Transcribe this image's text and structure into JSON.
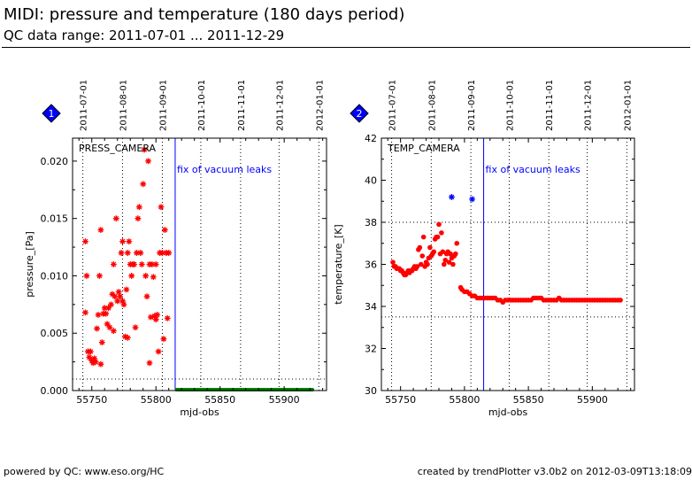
{
  "header": {
    "title": "MIDI: pressure and temperature (180 days period)",
    "subtitle": "QC data range: 2011-07-01 ... 2011-12-29"
  },
  "footer": {
    "left": "powered by QC: www.eso.org/HC",
    "right": "created by trendPlotter v3.0b2 on 2012-03-09T13:18:09"
  },
  "colors": {
    "data": "#ff0000",
    "outlier": "#0000ff",
    "recent": "#008000",
    "event_line": "#0000ff",
    "badge": "#0000ff"
  },
  "chart_data": [
    {
      "type": "scatter",
      "badge": "1",
      "panel_label": "PRESS_CAMERA",
      "xlabel": "mjd-obs",
      "ylabel": "pressure_[Pa]",
      "xlim": [
        55735,
        55933
      ],
      "ylim": [
        0,
        0.022
      ],
      "x_ticks": [
        55750,
        55800,
        55850,
        55900
      ],
      "x_tick_labels": [
        "55750",
        "55800",
        "55850",
        "55900"
      ],
      "y_ticks": [
        0,
        0.005,
        0.01,
        0.015,
        0.02
      ],
      "y_tick_labels": [
        "0.000",
        "0.005",
        "0.010",
        "0.015",
        "0.020"
      ],
      "date_ticks": [
        {
          "label": "2011-07-01",
          "mjd": 55743
        },
        {
          "label": "2011-08-01",
          "mjd": 55774
        },
        {
          "label": "2011-09-01",
          "mjd": 55805
        },
        {
          "label": "2011-10-01",
          "mjd": 55835
        },
        {
          "label": "2011-11-01",
          "mjd": 55866
        },
        {
          "label": "2011-12-01",
          "mjd": 55896
        },
        {
          "label": "2012-01-01",
          "mjd": 55927
        }
      ],
      "hlines": [
        0.001
      ],
      "event": {
        "x": 55815,
        "label": "fix of vacuum leaks"
      },
      "series": [
        {
          "role": "data",
          "marker": "star",
          "points": [
            [
              55745,
              0.013
            ],
            [
              55745,
              0.0068
            ],
            [
              55746,
              0.01
            ],
            [
              55747,
              0.0034
            ],
            [
              55748,
              0.0029
            ],
            [
              55749,
              0.0034
            ],
            [
              55750,
              0.0026
            ],
            [
              55751,
              0.0024
            ],
            [
              55752,
              0.0028
            ],
            [
              55753,
              0.0025
            ],
            [
              55754,
              0.0054
            ],
            [
              55755,
              0.0066
            ],
            [
              55756,
              0.01
            ],
            [
              55757,
              0.014
            ],
            [
              55757,
              0.0023
            ],
            [
              55758,
              0.0042
            ],
            [
              55759,
              0.0067
            ],
            [
              55760,
              0.0072
            ],
            [
              55761,
              0.0067
            ],
            [
              55762,
              0.0058
            ],
            [
              55763,
              0.0072
            ],
            [
              55764,
              0.0055
            ],
            [
              55765,
              0.0075
            ],
            [
              55766,
              0.0084
            ],
            [
              55767,
              0.0052
            ],
            [
              55767,
              0.011
            ],
            [
              55768,
              0.0082
            ],
            [
              55769,
              0.015
            ],
            [
              55770,
              0.0078
            ],
            [
              55771,
              0.0086
            ],
            [
              55772,
              0.0082
            ],
            [
              55773,
              0.012
            ],
            [
              55774,
              0.013
            ],
            [
              55774,
              0.0078
            ],
            [
              55775,
              0.0075
            ],
            [
              55776,
              0.0047
            ],
            [
              55777,
              0.0088
            ],
            [
              55778,
              0.0046
            ],
            [
              55778,
              0.012
            ],
            [
              55779,
              0.013
            ],
            [
              55780,
              0.011
            ],
            [
              55781,
              0.01
            ],
            [
              55782,
              0.011
            ],
            [
              55783,
              0.011
            ],
            [
              55784,
              0.0055
            ],
            [
              55785,
              0.012
            ],
            [
              55786,
              0.015
            ],
            [
              55787,
              0.016
            ],
            [
              55788,
              0.012
            ],
            [
              55789,
              0.011
            ],
            [
              55790,
              0.018
            ],
            [
              55791,
              0.021
            ],
            [
              55792,
              0.01
            ],
            [
              55793,
              0.0082
            ],
            [
              55794,
              0.02
            ],
            [
              55795,
              0.0024
            ],
            [
              55795,
              0.011
            ],
            [
              55796,
              0.0064
            ],
            [
              55797,
              0.011
            ],
            [
              55798,
              0.0099
            ],
            [
              55799,
              0.0065
            ],
            [
              55800,
              0.0062
            ],
            [
              55800,
              0.011
            ],
            [
              55801,
              0.0066
            ],
            [
              55802,
              0.0034
            ],
            [
              55803,
              0.012
            ],
            [
              55804,
              0.016
            ],
            [
              55805,
              0.012
            ],
            [
              55806,
              0.0045
            ],
            [
              55807,
              0.014
            ],
            [
              55808,
              0.012
            ],
            [
              55809,
              0.0063
            ],
            [
              55810,
              0.012
            ]
          ]
        },
        {
          "role": "recent",
          "marker": "band",
          "x_range": [
            55816,
            55922
          ],
          "y": 0.0
        }
      ]
    },
    {
      "type": "scatter",
      "badge": "2",
      "panel_label": "TEMP_CAMERA",
      "xlabel": "mjd-obs",
      "ylabel": "temperature_[K]",
      "xlim": [
        55735,
        55933
      ],
      "ylim": [
        30,
        42
      ],
      "x_ticks": [
        55750,
        55800,
        55850,
        55900
      ],
      "x_tick_labels": [
        "55750",
        "55800",
        "55850",
        "55900"
      ],
      "y_ticks": [
        30,
        32,
        34,
        36,
        38,
        40,
        42
      ],
      "y_tick_labels": [
        "30",
        "32",
        "34",
        "36",
        "38",
        "40",
        "42"
      ],
      "date_ticks": [
        {
          "label": "2011-07-01",
          "mjd": 55743
        },
        {
          "label": "2011-08-01",
          "mjd": 55774
        },
        {
          "label": "2011-09-01",
          "mjd": 55805
        },
        {
          "label": "2011-10-01",
          "mjd": 55835
        },
        {
          "label": "2011-11-01",
          "mjd": 55866
        },
        {
          "label": "2011-12-01",
          "mjd": 55896
        },
        {
          "label": "2012-01-01",
          "mjd": 55927
        }
      ],
      "hlines": [
        38,
        33.5
      ],
      "event": {
        "x": 55815,
        "label": "fix of vacuum leaks"
      },
      "series": [
        {
          "role": "data",
          "marker": "dot",
          "points": [
            [
              55744,
              36.1
            ],
            [
              55745,
              35.9
            ],
            [
              55746,
              35.9
            ],
            [
              55747,
              35.8
            ],
            [
              55748,
              35.8
            ],
            [
              55749,
              35.8
            ],
            [
              55750,
              35.7
            ],
            [
              55751,
              35.7
            ],
            [
              55752,
              35.6
            ],
            [
              55753,
              35.5
            ],
            [
              55754,
              35.5
            ],
            [
              55755,
              35.6
            ],
            [
              55756,
              35.7
            ],
            [
              55757,
              35.6
            ],
            [
              55758,
              35.7
            ],
            [
              55759,
              35.7
            ],
            [
              55760,
              35.8
            ],
            [
              55761,
              35.9
            ],
            [
              55762,
              35.8
            ],
            [
              55763,
              35.9
            ],
            [
              55764,
              36.7
            ],
            [
              55765,
              36.8
            ],
            [
              55766,
              36.0
            ],
            [
              55767,
              36.4
            ],
            [
              55768,
              37.3
            ],
            [
              55769,
              35.9
            ],
            [
              55770,
              36.1
            ],
            [
              55771,
              36.0
            ],
            [
              55772,
              36.3
            ],
            [
              55773,
              36.8
            ],
            [
              55774,
              36.4
            ],
            [
              55775,
              36.5
            ],
            [
              55776,
              36.6
            ],
            [
              55777,
              37.2
            ],
            [
              55778,
              37.3
            ],
            [
              55779,
              37.3
            ],
            [
              55780,
              37.9
            ],
            [
              55781,
              36.5
            ],
            [
              55782,
              37.5
            ],
            [
              55783,
              36.6
            ],
            [
              55784,
              36.0
            ],
            [
              55785,
              36.2
            ],
            [
              55786,
              36.5
            ],
            [
              55787,
              36.6
            ],
            [
              55788,
              36.1
            ],
            [
              55789,
              36.5
            ],
            [
              55790,
              36.3
            ],
            [
              55791,
              36.0
            ],
            [
              55792,
              36.4
            ],
            [
              55793,
              36.5
            ],
            [
              55794,
              37.0
            ],
            [
              55797,
              34.9
            ],
            [
              55798,
              34.8
            ],
            [
              55800,
              34.7
            ],
            [
              55802,
              34.7
            ],
            [
              55804,
              34.6
            ],
            [
              55806,
              34.5
            ],
            [
              55808,
              34.5
            ],
            [
              55810,
              34.4
            ],
            [
              55812,
              34.4
            ],
            [
              55814,
              34.4
            ],
            [
              55816,
              34.4
            ],
            [
              55818,
              34.4
            ],
            [
              55820,
              34.4
            ],
            [
              55822,
              34.4
            ],
            [
              55824,
              34.4
            ],
            [
              55826,
              34.3
            ],
            [
              55828,
              34.3
            ],
            [
              55830,
              34.2
            ],
            [
              55832,
              34.3
            ],
            [
              55834,
              34.3
            ],
            [
              55836,
              34.3
            ],
            [
              55838,
              34.3
            ],
            [
              55840,
              34.3
            ],
            [
              55842,
              34.3
            ],
            [
              55844,
              34.3
            ],
            [
              55846,
              34.3
            ],
            [
              55848,
              34.3
            ],
            [
              55850,
              34.3
            ],
            [
              55852,
              34.3
            ],
            [
              55854,
              34.4
            ],
            [
              55856,
              34.4
            ],
            [
              55858,
              34.4
            ],
            [
              55860,
              34.4
            ],
            [
              55862,
              34.3
            ],
            [
              55864,
              34.3
            ],
            [
              55866,
              34.3
            ],
            [
              55868,
              34.3
            ],
            [
              55870,
              34.3
            ],
            [
              55872,
              34.3
            ],
            [
              55874,
              34.4
            ],
            [
              55876,
              34.3
            ],
            [
              55878,
              34.3
            ],
            [
              55880,
              34.3
            ],
            [
              55882,
              34.3
            ],
            [
              55884,
              34.3
            ],
            [
              55886,
              34.3
            ],
            [
              55888,
              34.3
            ],
            [
              55890,
              34.3
            ],
            [
              55892,
              34.3
            ],
            [
              55894,
              34.3
            ],
            [
              55896,
              34.3
            ],
            [
              55898,
              34.3
            ],
            [
              55900,
              34.3
            ],
            [
              55902,
              34.3
            ],
            [
              55904,
              34.3
            ],
            [
              55906,
              34.3
            ],
            [
              55908,
              34.3
            ],
            [
              55910,
              34.3
            ],
            [
              55912,
              34.3
            ],
            [
              55914,
              34.3
            ],
            [
              55916,
              34.3
            ],
            [
              55918,
              34.3
            ],
            [
              55920,
              34.3
            ],
            [
              55922,
              34.3
            ]
          ]
        },
        {
          "role": "outlier",
          "marker": "star",
          "points": [
            [
              55790,
              39.2
            ],
            [
              55806,
              39.1
            ]
          ]
        }
      ]
    }
  ]
}
